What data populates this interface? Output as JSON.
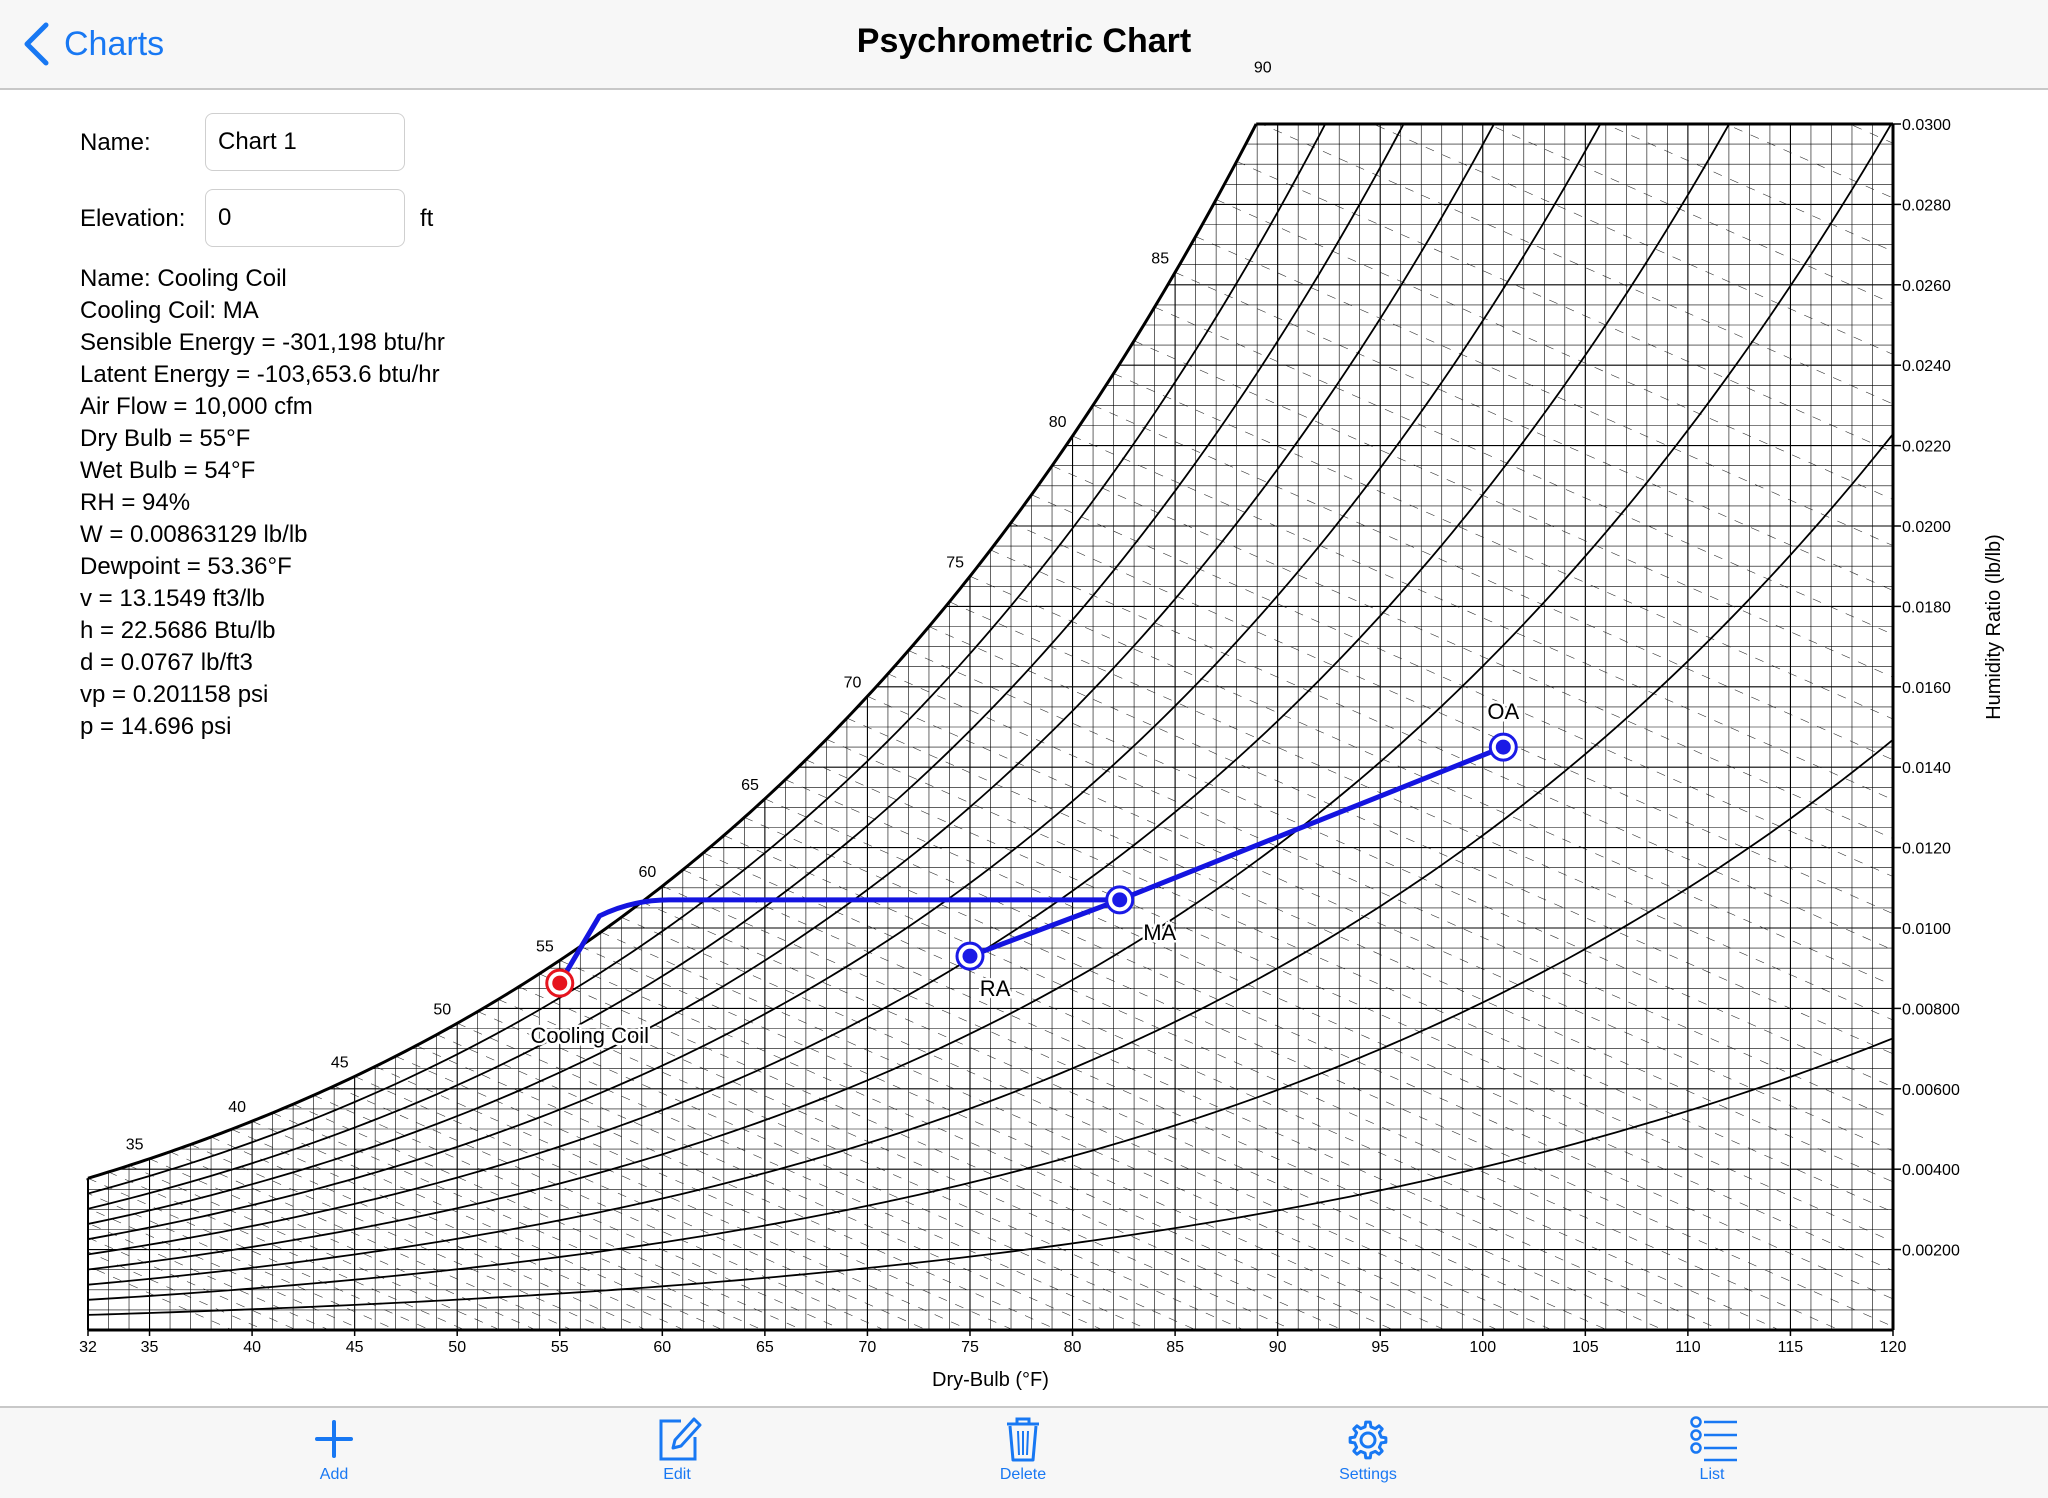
{
  "nav": {
    "back_label": "Charts",
    "title": "Psychrometric Chart"
  },
  "form": {
    "name_label": "Name:",
    "name_value": "Chart 1",
    "elevation_label": "Elevation:",
    "elevation_value": "0",
    "elevation_unit": "ft"
  },
  "info": [
    "Name: Cooling Coil",
    "Cooling Coil: MA",
    "Sensible Energy = -301,198 btu/hr",
    "Latent Energy = -103,653.6 btu/hr",
    "Air Flow = 10,000 cfm",
    "Dry Bulb = 55°F",
    "Wet Bulb = 54°F",
    "RH = 94%",
    "W = 0.00863129 lb/lb",
    "Dewpoint = 53.36°F",
    "v = 13.1549 ft3/lb",
    "h = 22.5686 Btu/lb",
    "d = 0.0767 lb/ft3",
    "vp = 0.201158 psi",
    "p = 14.696 psi"
  ],
  "toolbar": [
    {
      "label": "Add",
      "icon": "plus-icon"
    },
    {
      "label": "Edit",
      "icon": "pencil-edit-icon"
    },
    {
      "label": "Delete",
      "icon": "trash-icon"
    },
    {
      "label": "Settings",
      "icon": "gear-icon"
    },
    {
      "label": "List",
      "icon": "list-icon"
    }
  ],
  "chart_data": {
    "type": "scatter",
    "title": "",
    "xlabel": "Dry-Bulb (°F)",
    "ylabel": "Humidity Ratio (lb/lb)",
    "xlim": [
      32,
      120
    ],
    "ylim": [
      0,
      0.03
    ],
    "x_ticks": [
      "32",
      "35",
      "40",
      "45",
      "50",
      "55",
      "60",
      "65",
      "70",
      "75",
      "80",
      "85",
      "90",
      "95",
      "100",
      "105",
      "110",
      "115",
      "120"
    ],
    "y_ticks": [
      "0.00200",
      "0.00400",
      "0.00600",
      "0.00800",
      "0.0100",
      "0.0120",
      "0.0140",
      "0.0160",
      "0.0180",
      "0.0200",
      "0.0220",
      "0.0240",
      "0.0260",
      "0.0280",
      "0.0300"
    ],
    "saturation_labels": [
      35,
      40,
      45,
      50,
      55,
      60,
      65,
      70,
      75,
      80,
      85,
      90
    ],
    "grid": true,
    "rh_curves": [
      0.1,
      0.2,
      0.3,
      0.4,
      0.5,
      0.6,
      0.7,
      0.8,
      0.9
    ],
    "points": [
      {
        "name": "OA",
        "x": 101.0,
        "y": 0.0145,
        "color": "#1a1ae6"
      },
      {
        "name": "MA",
        "x": 82.3,
        "y": 0.0107,
        "color": "#1a1ae6"
      },
      {
        "name": "RA",
        "x": 75.0,
        "y": 0.0093,
        "color": "#1a1ae6"
      },
      {
        "name": "Cooling Coil",
        "x": 55.0,
        "y": 0.00863,
        "color": "#e6141e"
      }
    ],
    "process_color": "#1414e0"
  }
}
